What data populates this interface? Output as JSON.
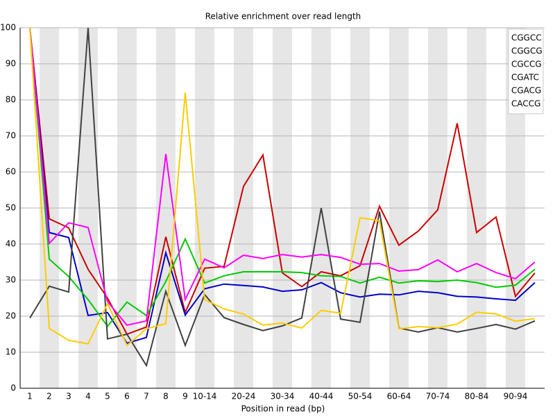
{
  "chart_data": {
    "type": "line",
    "title": "Relative enrichment over read length",
    "x_label": "Position in read (bp)",
    "categories": [
      "1",
      "2",
      "3",
      "4",
      "5",
      "6",
      "7",
      "8",
      "9",
      "10-14",
      null,
      "20-24",
      null,
      "30-34",
      null,
      "40-44",
      null,
      "50-54",
      null,
      "60-64",
      null,
      "70-74",
      null,
      "80-84",
      null,
      "90-94",
      null
    ],
    "series": [
      {
        "name": "CGGCC",
        "color": "#cc0000",
        "values": [
          100,
          47,
          44.5,
          33,
          25,
          15,
          17,
          42,
          21,
          33.3,
          33.8,
          56,
          64.7,
          32,
          28.2,
          32.3,
          31.2,
          34,
          50.5,
          39.7,
          43.6,
          49.5,
          73.5,
          43.2,
          47.5,
          25.5,
          32
        ]
      },
      {
        "name": "CGGCG",
        "color": "#0000cc",
        "values": [
          100,
          43.2,
          41.8,
          20.2,
          21,
          12.5,
          14.1,
          37.6,
          20.3,
          27.6,
          28.9,
          28.5,
          28.1,
          26.9,
          27.3,
          29.3,
          26.5,
          25.3,
          26.1,
          25.9,
          26.9,
          26.5,
          25.5,
          25.3,
          24.8,
          24.4,
          29.3
        ]
      },
      {
        "name": "CGCCG",
        "color": "#00cc00",
        "values": [
          100,
          35.8,
          31,
          24.6,
          17.2,
          23.9,
          20.2,
          29.6,
          41.4,
          29.2,
          31.2,
          32.3,
          32.3,
          32.3,
          32.1,
          31.2,
          31,
          29.2,
          30.8,
          29.2,
          29.8,
          29.6,
          30,
          29.3,
          28,
          28.6,
          33
        ]
      },
      {
        "name": "CGATC",
        "color": "#404040",
        "values": [
          19.5,
          28.3,
          26.7,
          100,
          13.7,
          15,
          6.3,
          26.9,
          11.9,
          26,
          19.6,
          17.7,
          16,
          17.3,
          19.5,
          50,
          19.2,
          18.3,
          49,
          16.7,
          15.6,
          16.8,
          15.6,
          16.6,
          17.7,
          16.4,
          18.7
        ]
      },
      {
        "name": "CGACG",
        "color": "#ff00ff",
        "values": [
          100,
          40.2,
          45.9,
          44.6,
          24,
          17.5,
          18.7,
          65,
          24.6,
          35.8,
          33.4,
          36.9,
          36,
          37.1,
          36.4,
          37.1,
          36.3,
          34.4,
          34.6,
          32.5,
          32.9,
          35.6,
          32.3,
          34.6,
          32.1,
          30.4,
          35
        ]
      },
      {
        "name": "CACCG",
        "color": "#ffcc00",
        "values": [
          100,
          16.6,
          13.3,
          12.3,
          23.5,
          11.9,
          16.5,
          17.9,
          82,
          24.6,
          22,
          20.6,
          17.5,
          18.1,
          16.7,
          21.6,
          20.8,
          47.3,
          46.5,
          16.5,
          17.1,
          16.8,
          17.8,
          21.1,
          20.6,
          18.6,
          19.3
        ]
      }
    ],
    "ylim": [
      0,
      100
    ],
    "yticks": [
      0,
      10,
      20,
      30,
      40,
      50,
      60,
      70,
      80,
      90,
      100
    ],
    "grid": true,
    "legend": "top-right"
  }
}
